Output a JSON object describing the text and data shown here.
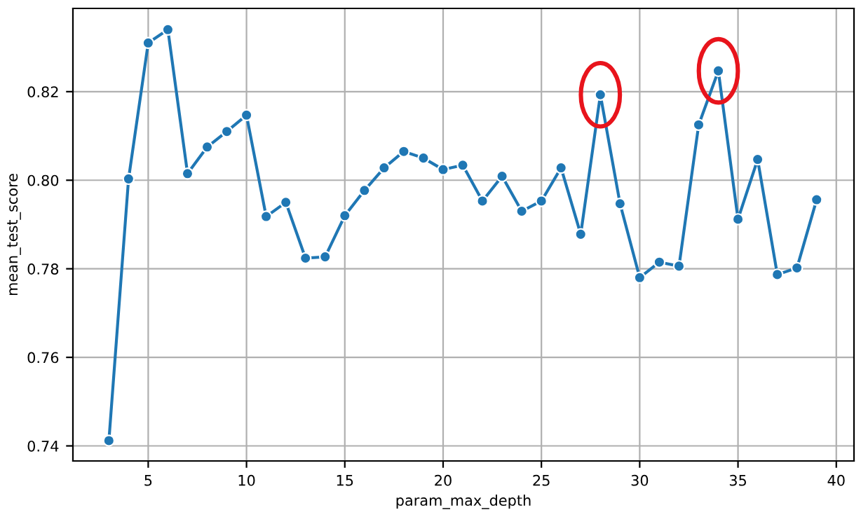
{
  "chart_data": {
    "type": "line",
    "xlabel": "param_max_depth",
    "ylabel": "mean_test_score",
    "x": [
      3,
      4,
      5,
      6,
      7,
      8,
      9,
      10,
      11,
      12,
      13,
      14,
      15,
      16,
      17,
      18,
      19,
      20,
      21,
      22,
      23,
      24,
      25,
      26,
      27,
      28,
      29,
      30,
      31,
      32,
      33,
      34,
      35,
      36,
      37,
      38,
      39
    ],
    "series": [
      {
        "color": "#1f77b4",
        "values": [
          0.7412,
          0.8003,
          0.831,
          0.834,
          0.8015,
          0.8075,
          0.811,
          0.8147,
          0.7918,
          0.795,
          0.7824,
          0.7827,
          0.792,
          0.7977,
          0.8028,
          0.8065,
          0.805,
          0.8024,
          0.8034,
          0.7953,
          0.8009,
          0.793,
          0.7953,
          0.8028,
          0.7878,
          0.8193,
          0.7947,
          0.778,
          0.7815,
          0.7806,
          0.8125,
          0.8247,
          0.7912,
          0.8047,
          0.7787,
          0.7802,
          0.7956
        ]
      }
    ],
    "xlim": [
      1.17,
      40.9
    ],
    "ylim": [
      0.7366,
      0.8388
    ],
    "xticks": [
      5,
      10,
      15,
      20,
      25,
      30,
      35,
      40
    ],
    "yticks": [
      {
        "value": 0.74,
        "label": "0.74"
      },
      {
        "value": 0.76,
        "label": "0.76"
      },
      {
        "value": 0.78,
        "label": "0.78"
      },
      {
        "value": 0.8,
        "label": "0.80"
      },
      {
        "value": 0.82,
        "label": "0.82"
      }
    ],
    "grid": true,
    "marker": "circle",
    "line_style": "solid"
  }
}
